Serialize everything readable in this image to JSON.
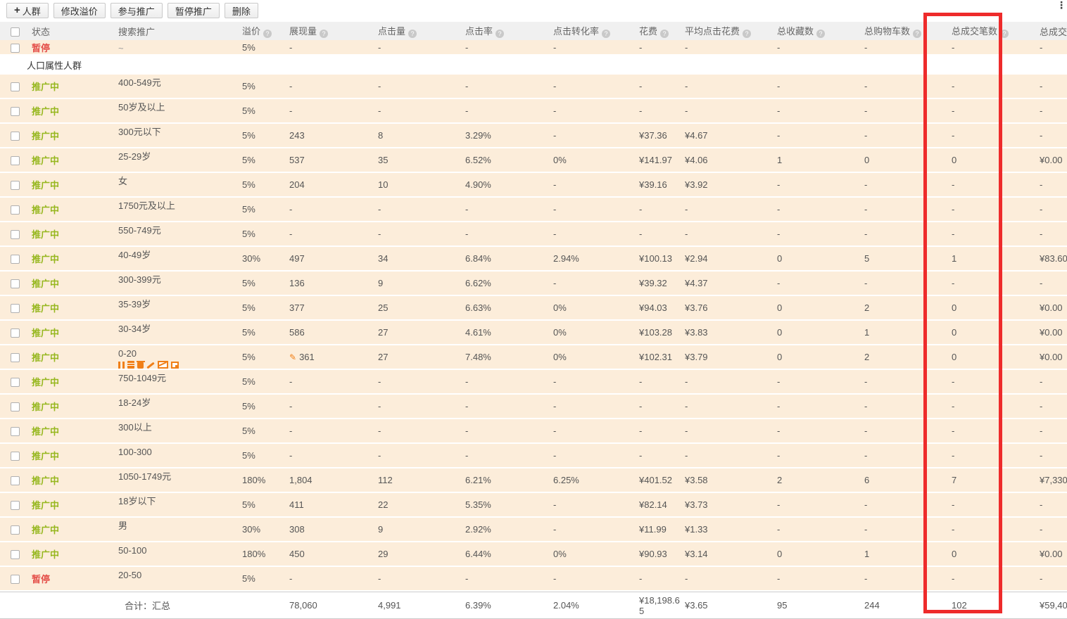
{
  "toolbar": {
    "add_crowd": "人群",
    "modify_premium": "修改溢价",
    "join_promotion": "参与推广",
    "pause_promotion": "暂停推广",
    "delete": "删除"
  },
  "icons": {
    "plus": "+",
    "help": "?",
    "more": "⋮",
    "pencil": "✎"
  },
  "highlight_color": "#ee2b2b",
  "table": {
    "columns": [
      {
        "key": "status",
        "label": "状态",
        "help": false
      },
      {
        "key": "name",
        "label": "搜索推广",
        "help": false
      },
      {
        "key": "premium",
        "label": "溢价",
        "help": true
      },
      {
        "key": "impressions",
        "label": "展现量",
        "help": true
      },
      {
        "key": "clicks",
        "label": "点击量",
        "help": true
      },
      {
        "key": "ctr",
        "label": "点击率",
        "help": true
      },
      {
        "key": "conversion",
        "label": "点击转化率",
        "help": true
      },
      {
        "key": "cost",
        "label": "花费",
        "help": true
      },
      {
        "key": "avg_cost",
        "label": "平均点击花费",
        "help": true
      },
      {
        "key": "favorites",
        "label": "总收藏数",
        "help": true
      },
      {
        "key": "carts",
        "label": "总购物车数",
        "help": true
      },
      {
        "key": "deals",
        "label": "总成交笔数",
        "help": true
      },
      {
        "key": "amount",
        "label": "总成交金额",
        "help": false
      }
    ],
    "partial_row": {
      "status": "暂停",
      "kind": "paused",
      "name": "~",
      "premium": "5%",
      "impressions": "-",
      "clicks": "-",
      "ctr": "-",
      "conversion": "-",
      "cost": "-",
      "avg_cost": "-",
      "favorites": "-",
      "carts": "-",
      "deals": "-",
      "amount": "-"
    },
    "group_label": "人口属性人群",
    "rows": [
      {
        "status": "推广中",
        "kind": "active",
        "name": "400-549元",
        "premium": "5%",
        "impressions": "-",
        "clicks": "-",
        "ctr": "-",
        "conversion": "-",
        "cost": "-",
        "avg_cost": "-",
        "favorites": "-",
        "carts": "-",
        "deals": "-",
        "amount": "-"
      },
      {
        "status": "推广中",
        "kind": "active",
        "name": "50岁及以上",
        "premium": "5%",
        "impressions": "-",
        "clicks": "-",
        "ctr": "-",
        "conversion": "-",
        "cost": "-",
        "avg_cost": "-",
        "favorites": "-",
        "carts": "-",
        "deals": "-",
        "amount": "-"
      },
      {
        "status": "推广中",
        "kind": "active",
        "name": "300元以下",
        "premium": "5%",
        "impressions": "243",
        "clicks": "8",
        "ctr": "3.29%",
        "conversion": "-",
        "cost": "¥37.36",
        "avg_cost": "¥4.67",
        "favorites": "-",
        "carts": "-",
        "deals": "-",
        "amount": "-"
      },
      {
        "status": "推广中",
        "kind": "active",
        "name": "25-29岁",
        "premium": "5%",
        "impressions": "537",
        "clicks": "35",
        "ctr": "6.52%",
        "conversion": "0%",
        "cost": "¥141.97",
        "avg_cost": "¥4.06",
        "favorites": "1",
        "carts": "0",
        "deals": "0",
        "amount": "¥0.00"
      },
      {
        "status": "推广中",
        "kind": "active",
        "name": "女",
        "premium": "5%",
        "impressions": "204",
        "clicks": "10",
        "ctr": "4.90%",
        "conversion": "-",
        "cost": "¥39.16",
        "avg_cost": "¥3.92",
        "favorites": "-",
        "carts": "-",
        "deals": "-",
        "amount": "-"
      },
      {
        "status": "推广中",
        "kind": "active",
        "name": "1750元及以上",
        "premium": "5%",
        "impressions": "-",
        "clicks": "-",
        "ctr": "-",
        "conversion": "-",
        "cost": "-",
        "avg_cost": "-",
        "favorites": "-",
        "carts": "-",
        "deals": "-",
        "amount": "-"
      },
      {
        "status": "推广中",
        "kind": "active",
        "name": "550-749元",
        "premium": "5%",
        "impressions": "-",
        "clicks": "-",
        "ctr": "-",
        "conversion": "-",
        "cost": "-",
        "avg_cost": "-",
        "favorites": "-",
        "carts": "-",
        "deals": "-",
        "amount": "-"
      },
      {
        "status": "推广中",
        "kind": "active",
        "name": "40-49岁",
        "premium": "30%",
        "impressions": "497",
        "clicks": "34",
        "ctr": "6.84%",
        "conversion": "2.94%",
        "cost": "¥100.13",
        "avg_cost": "¥2.94",
        "favorites": "0",
        "carts": "5",
        "deals": "1",
        "amount": "¥83.60"
      },
      {
        "status": "推广中",
        "kind": "active",
        "name": "300-399元",
        "premium": "5%",
        "impressions": "136",
        "clicks": "9",
        "ctr": "6.62%",
        "conversion": "-",
        "cost": "¥39.32",
        "avg_cost": "¥4.37",
        "favorites": "-",
        "carts": "-",
        "deals": "-",
        "amount": "-"
      },
      {
        "status": "推广中",
        "kind": "active",
        "name": "35-39岁",
        "premium": "5%",
        "impressions": "377",
        "clicks": "25",
        "ctr": "6.63%",
        "conversion": "0%",
        "cost": "¥94.03",
        "avg_cost": "¥3.76",
        "favorites": "0",
        "carts": "2",
        "deals": "0",
        "amount": "¥0.00"
      },
      {
        "status": "推广中",
        "kind": "active",
        "name": "30-34岁",
        "premium": "5%",
        "impressions": "586",
        "clicks": "27",
        "ctr": "4.61%",
        "conversion": "0%",
        "cost": "¥103.28",
        "avg_cost": "¥3.83",
        "favorites": "0",
        "carts": "1",
        "deals": "0",
        "amount": "¥0.00"
      },
      {
        "status": "推广中",
        "kind": "active",
        "name": "0-20",
        "icons": true,
        "pencil": true,
        "premium": "5%",
        "impressions": "361",
        "clicks": "27",
        "ctr": "7.48%",
        "conversion": "0%",
        "cost": "¥102.31",
        "avg_cost": "¥3.79",
        "favorites": "0",
        "carts": "2",
        "deals": "0",
        "amount": "¥0.00"
      },
      {
        "status": "推广中",
        "kind": "active",
        "name": "750-1049元",
        "premium": "5%",
        "impressions": "-",
        "clicks": "-",
        "ctr": "-",
        "conversion": "-",
        "cost": "-",
        "avg_cost": "-",
        "favorites": "-",
        "carts": "-",
        "deals": "-",
        "amount": "-"
      },
      {
        "status": "推广中",
        "kind": "active",
        "name": "18-24岁",
        "premium": "5%",
        "impressions": "-",
        "clicks": "-",
        "ctr": "-",
        "conversion": "-",
        "cost": "-",
        "avg_cost": "-",
        "favorites": "-",
        "carts": "-",
        "deals": "-",
        "amount": "-"
      },
      {
        "status": "推广中",
        "kind": "active",
        "name": "300以上",
        "premium": "5%",
        "impressions": "-",
        "clicks": "-",
        "ctr": "-",
        "conversion": "-",
        "cost": "-",
        "avg_cost": "-",
        "favorites": "-",
        "carts": "-",
        "deals": "-",
        "amount": "-"
      },
      {
        "status": "推广中",
        "kind": "active",
        "name": "100-300",
        "premium": "5%",
        "impressions": "-",
        "clicks": "-",
        "ctr": "-",
        "conversion": "-",
        "cost": "-",
        "avg_cost": "-",
        "favorites": "-",
        "carts": "-",
        "deals": "-",
        "amount": "-"
      },
      {
        "status": "推广中",
        "kind": "active",
        "name": "1050-1749元",
        "premium": "180%",
        "impressions": "1,804",
        "clicks": "112",
        "ctr": "6.21%",
        "conversion": "6.25%",
        "cost": "¥401.52",
        "avg_cost": "¥3.58",
        "favorites": "2",
        "carts": "6",
        "deals": "7",
        "amount": "¥7,330"
      },
      {
        "status": "推广中",
        "kind": "active",
        "name": "18岁以下",
        "premium": "5%",
        "impressions": "411",
        "clicks": "22",
        "ctr": "5.35%",
        "conversion": "-",
        "cost": "¥82.14",
        "avg_cost": "¥3.73",
        "favorites": "-",
        "carts": "-",
        "deals": "-",
        "amount": "-"
      },
      {
        "status": "推广中",
        "kind": "active",
        "name": "男",
        "premium": "30%",
        "impressions": "308",
        "clicks": "9",
        "ctr": "2.92%",
        "conversion": "-",
        "cost": "¥11.99",
        "avg_cost": "¥1.33",
        "favorites": "-",
        "carts": "-",
        "deals": "-",
        "amount": "-"
      },
      {
        "status": "推广中",
        "kind": "active",
        "name": "50-100",
        "premium": "180%",
        "impressions": "450",
        "clicks": "29",
        "ctr": "6.44%",
        "conversion": "0%",
        "cost": "¥90.93",
        "avg_cost": "¥3.14",
        "favorites": "0",
        "carts": "1",
        "deals": "0",
        "amount": "¥0.00"
      },
      {
        "status": "暂停",
        "kind": "paused",
        "name": "20-50",
        "premium": "5%",
        "impressions": "-",
        "clicks": "-",
        "ctr": "-",
        "conversion": "-",
        "cost": "-",
        "avg_cost": "-",
        "favorites": "-",
        "carts": "-",
        "deals": "-",
        "amount": "-"
      }
    ],
    "total": {
      "label": "合计：汇总",
      "premium": "",
      "impressions": "78,060",
      "clicks": "4,991",
      "ctr": "6.39%",
      "conversion": "2.04%",
      "cost": "¥18,198.65",
      "avg_cost": "¥3.65",
      "favorites": "95",
      "carts": "244",
      "deals": "102",
      "amount": "¥59,40"
    }
  }
}
